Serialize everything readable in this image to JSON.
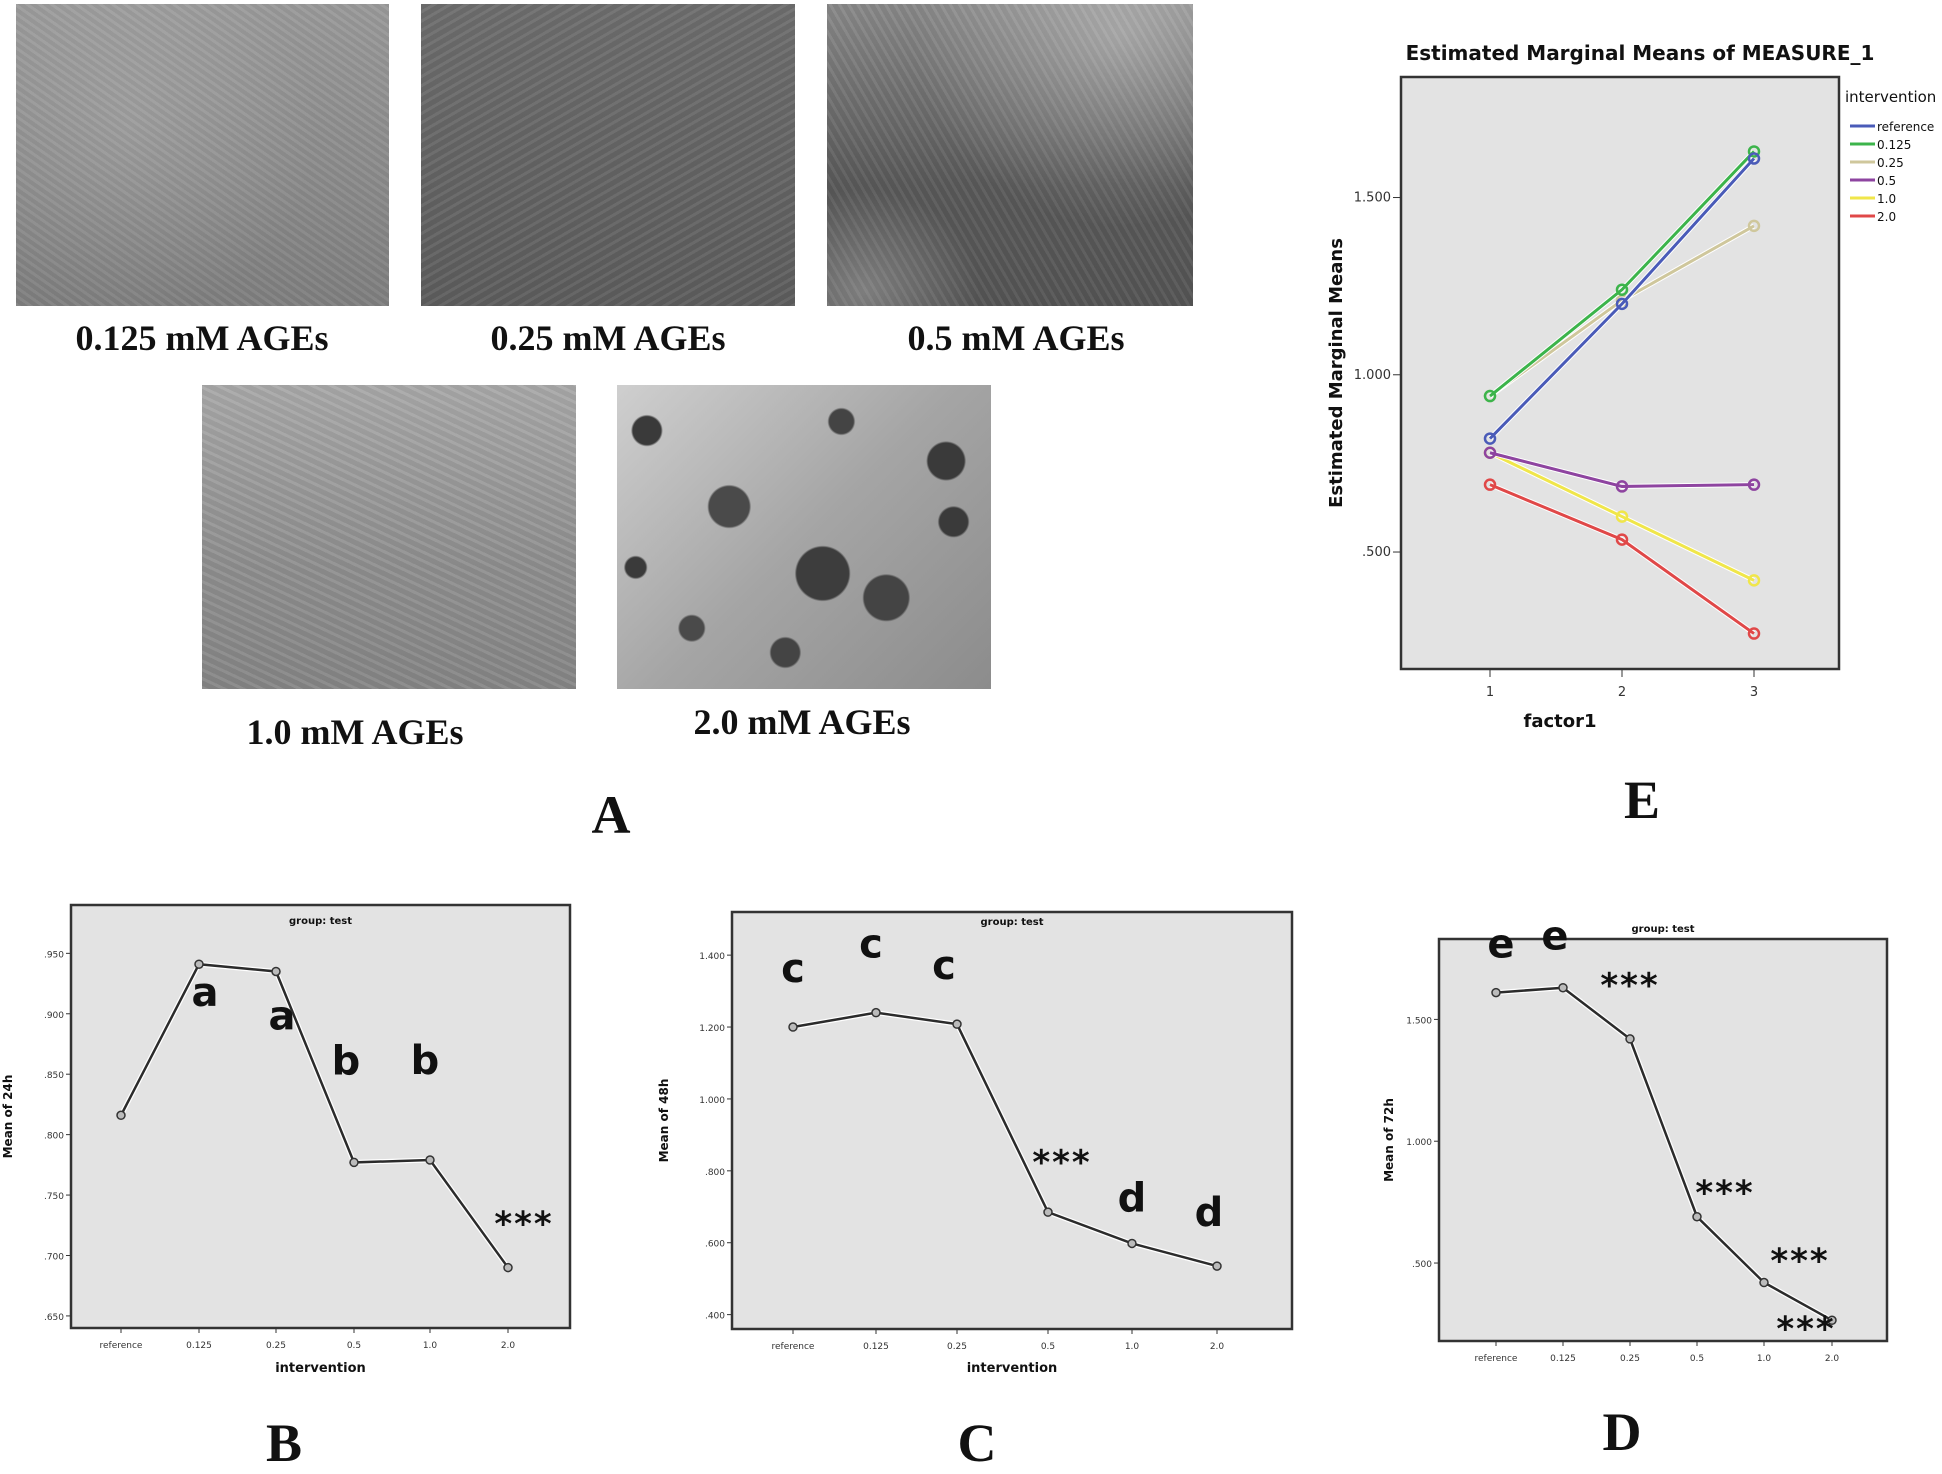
{
  "panel_a": {
    "label": "A",
    "images": [
      {
        "caption": "0.125 mM AGEs"
      },
      {
        "caption": "0.25 mM AGEs"
      },
      {
        "caption": "0.5 mM AGEs"
      },
      {
        "caption": "1.0 mM AGEs"
      },
      {
        "caption": "2.0 mM AGEs"
      }
    ]
  },
  "panel_labels": {
    "b": "B",
    "c": "C",
    "d": "D",
    "e": "E"
  },
  "chart_data": [
    {
      "id": "E",
      "type": "line",
      "title": "Estimated Marginal Means of MEASURE_1",
      "xlabel": "factor1",
      "ylabel": "Estimated Marginal Means",
      "x": [
        "1",
        "2",
        "3"
      ],
      "yticks": [
        ".500",
        "1.000",
        "1.500"
      ],
      "ytick_values": [
        0.5,
        1.0,
        1.5
      ],
      "ylim": [
        0.17,
        1.84
      ],
      "grid": false,
      "legend": {
        "title": "intervention",
        "placement": "right"
      },
      "series": [
        {
          "name": "reference",
          "color": "#4a5bb8",
          "values": [
            0.82,
            1.2,
            1.61
          ]
        },
        {
          "name": "0.125",
          "color": "#3cb44b",
          "values": [
            0.94,
            1.24,
            1.63
          ]
        },
        {
          "name": "0.25",
          "color": "#cfc79c",
          "values": [
            0.94,
            1.21,
            1.42
          ]
        },
        {
          "name": "0.5",
          "color": "#8e44a0",
          "values": [
            0.78,
            0.685,
            0.69
          ]
        },
        {
          "name": "1.0",
          "color": "#f0e64a",
          "values": [
            0.78,
            0.6,
            0.42
          ]
        },
        {
          "name": "2.0",
          "color": "#e04848",
          "values": [
            0.69,
            0.535,
            0.27
          ]
        }
      ]
    },
    {
      "id": "B",
      "type": "line",
      "title": "group: test",
      "xlabel": "intervention",
      "ylabel": "Mean of 24h",
      "categories": [
        "reference",
        "0.125",
        "0.25",
        "0.5",
        "1.0",
        "2.0"
      ],
      "values": [
        0.816,
        0.941,
        0.935,
        0.777,
        0.779,
        0.69
      ],
      "annotations": [
        "",
        "a",
        "a",
        "b",
        "b",
        "***"
      ],
      "yticks": [
        ".650",
        ".700",
        ".750",
        ".800",
        ".850",
        ".900",
        ".950"
      ],
      "ytick_values": [
        0.65,
        0.7,
        0.75,
        0.8,
        0.85,
        0.9,
        0.95
      ],
      "ylim": [
        0.64,
        0.99
      ],
      "grid": false
    },
    {
      "id": "C",
      "type": "line",
      "title": "group: test",
      "xlabel": "intervention",
      "ylabel": "Mean of 48h",
      "categories": [
        "reference",
        "0.125",
        "0.25",
        "0.5",
        "1.0",
        "2.0"
      ],
      "values": [
        1.2,
        1.24,
        1.208,
        0.685,
        0.598,
        0.535
      ],
      "annotations": [
        "c",
        "c",
        "c",
        "***",
        "d",
        "d"
      ],
      "yticks": [
        ".400",
        ".600",
        ".800",
        "1.000",
        "1.200",
        "1.400"
      ],
      "ytick_values": [
        0.4,
        0.6,
        0.8,
        1.0,
        1.2,
        1.4
      ],
      "ylim": [
        0.36,
        1.52
      ],
      "grid": false
    },
    {
      "id": "D",
      "type": "line",
      "title": "group: test",
      "xlabel": "",
      "ylabel": "Mean of 72h",
      "categories": [
        "reference",
        "0.125",
        "0.25",
        "0.5",
        "1.0",
        "2.0"
      ],
      "values": [
        1.61,
        1.63,
        1.42,
        0.69,
        0.42,
        0.265
      ],
      "annotations": [
        "e",
        "e",
        "***",
        "***",
        "***",
        "***"
      ],
      "yticks": [
        ".500",
        "1.000",
        "1.500"
      ],
      "ytick_values": [
        0.5,
        1.0,
        1.5
      ],
      "ylim": [
        0.18,
        1.83
      ],
      "grid": false
    }
  ]
}
